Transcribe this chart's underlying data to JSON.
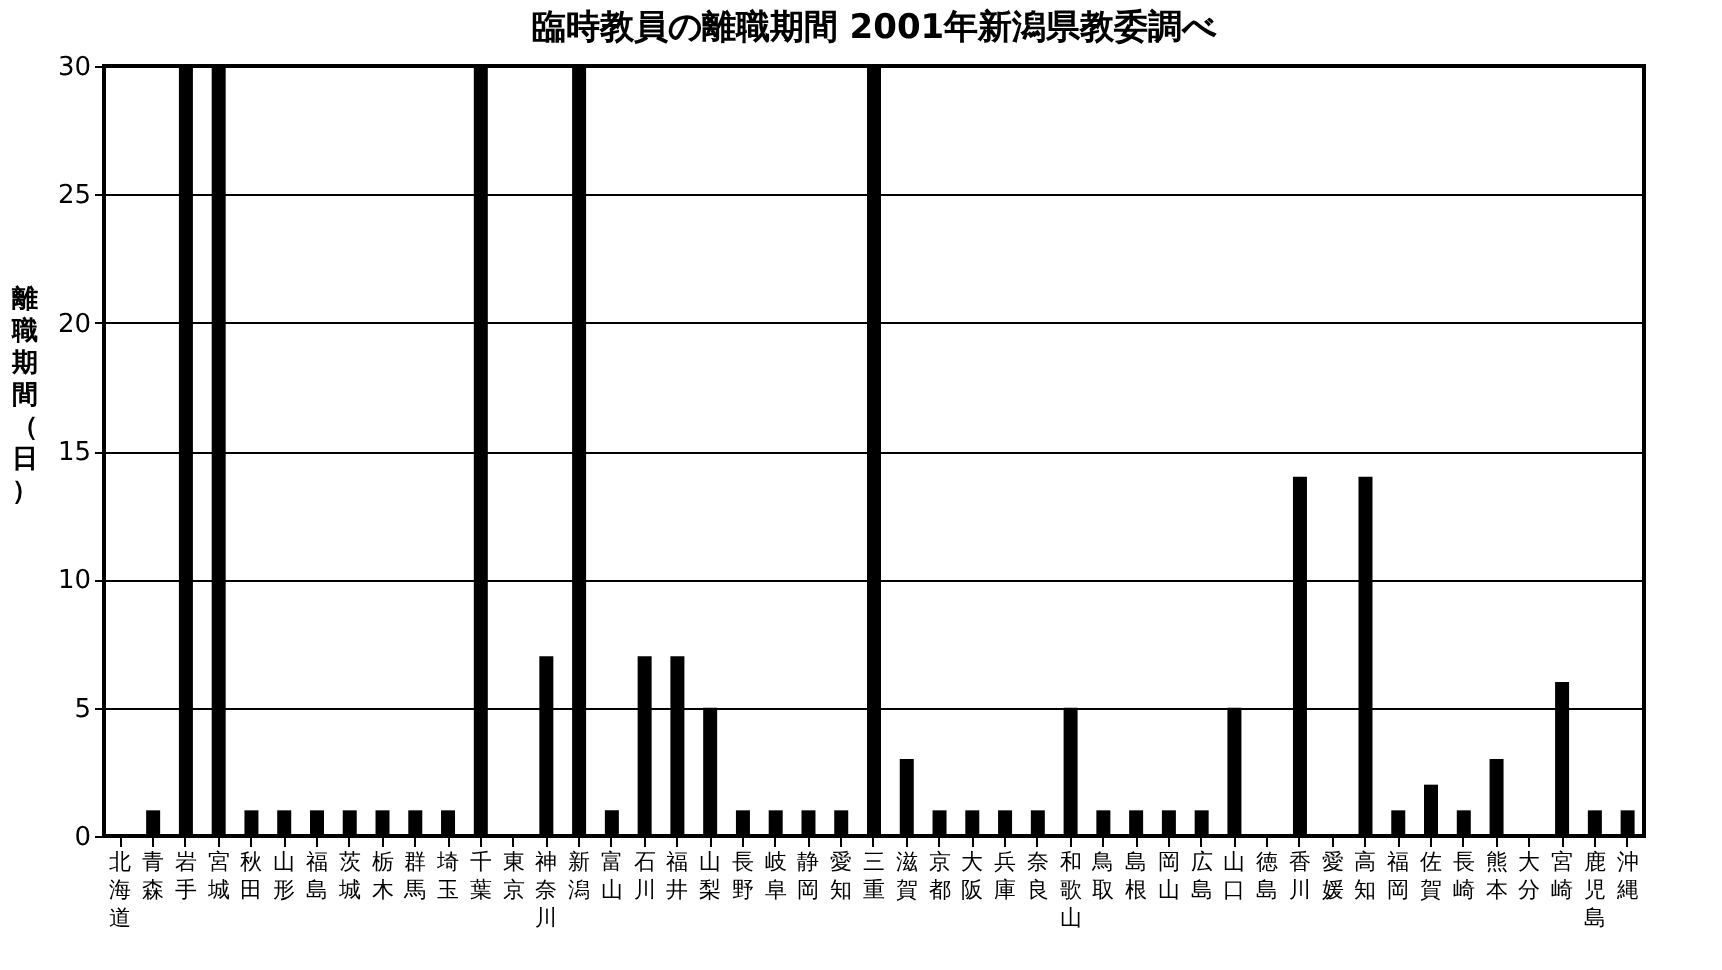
{
  "chart_data": {
    "type": "bar",
    "title": "臨時教員の離職期間 2001年新潟県教委調べ",
    "ylabel": "離職期間（日）",
    "categories": [
      "北海道",
      "青森",
      "岩手",
      "宮城",
      "秋田",
      "山形",
      "福島",
      "茨城",
      "栃木",
      "群馬",
      "埼玉",
      "千葉",
      "東京",
      "神奈川",
      "新潟",
      "富山",
      "石川",
      "福井",
      "山梨",
      "長野",
      "岐阜",
      "静岡",
      "愛知",
      "三重",
      "滋賀",
      "京都",
      "大阪",
      "兵庫",
      "奈良",
      "和歌山",
      "鳥取",
      "島根",
      "岡山",
      "広島",
      "山口",
      "徳島",
      "香川",
      "愛媛",
      "高知",
      "福岡",
      "佐賀",
      "長崎",
      "熊本",
      "大分",
      "宮崎",
      "鹿児島",
      "沖縄"
    ],
    "values": [
      0,
      1,
      30,
      30,
      1,
      1,
      1,
      1,
      1,
      1,
      1,
      30,
      0,
      7,
      30,
      1,
      7,
      7,
      5,
      1,
      1,
      1,
      1,
      30,
      3,
      1,
      1,
      1,
      1,
      5,
      1,
      1,
      1,
      1,
      5,
      0,
      14,
      0,
      14,
      1,
      2,
      1,
      3,
      0,
      6,
      1,
      1
    ],
    "color": "#000000",
    "ylim": [
      0,
      30
    ],
    "yticks": [
      0,
      5,
      10,
      15,
      20,
      25,
      30
    ],
    "grid": "y"
  }
}
